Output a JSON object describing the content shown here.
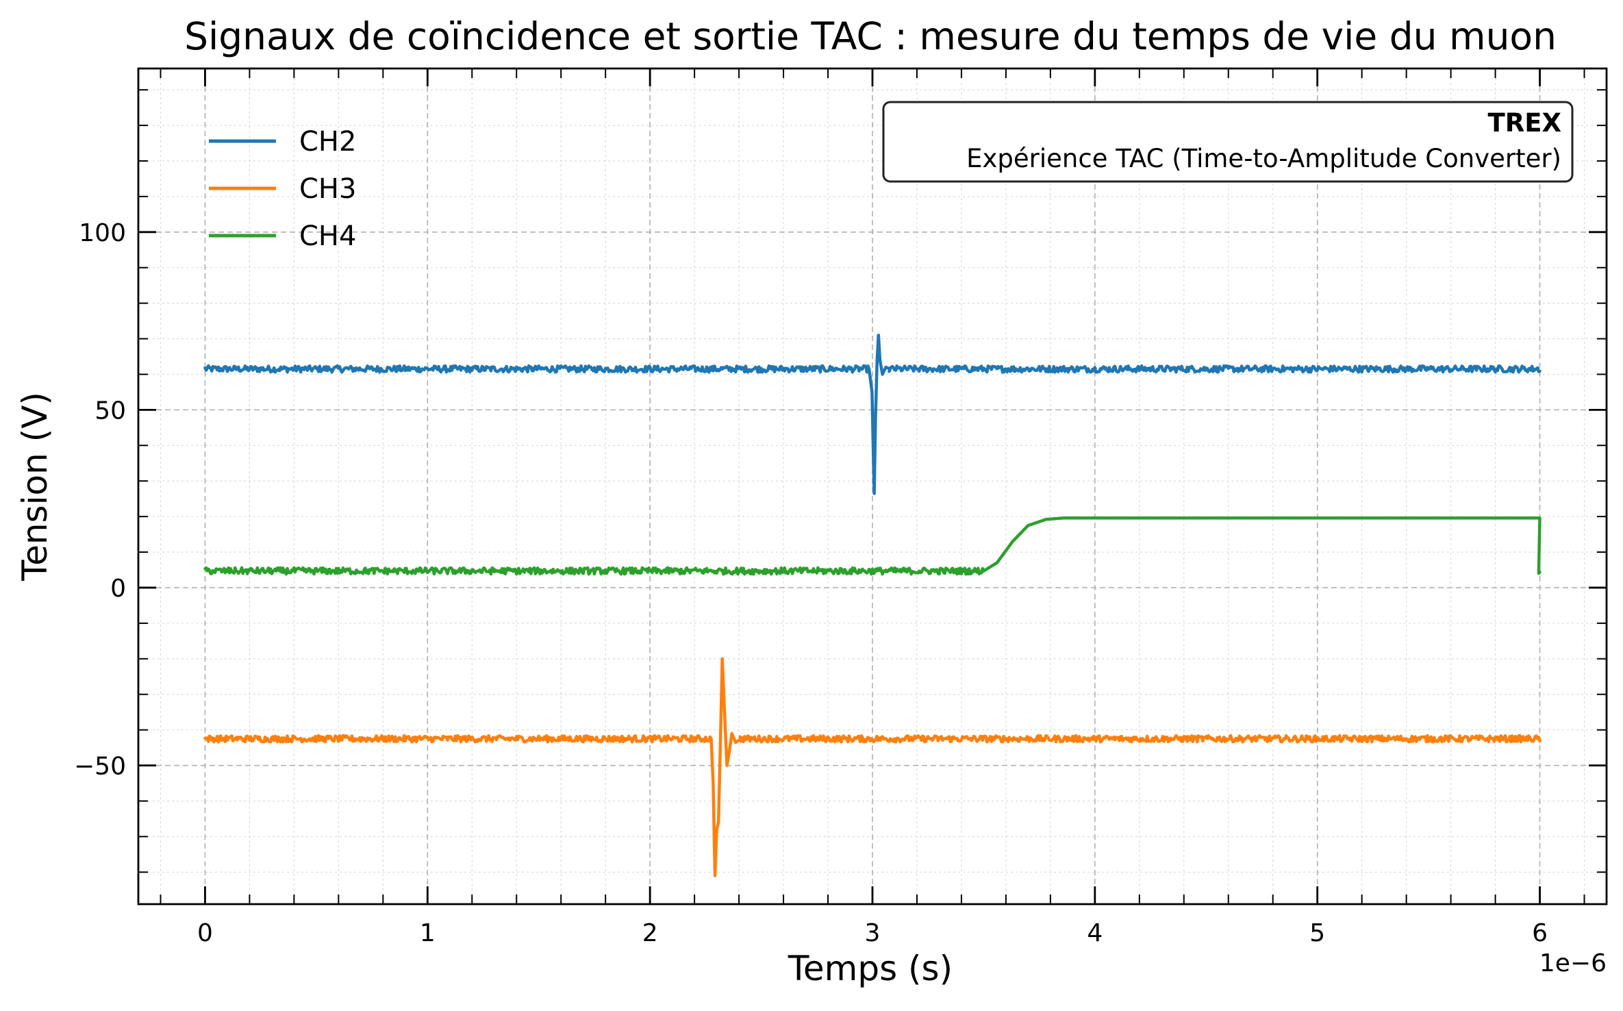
{
  "chart_data": {
    "type": "line",
    "title": "Signaux de coïncidence et sortie TAC : mesure du temps de vie du muon",
    "xlabel": "Temps (s)",
    "ylabel": "Tension (V)",
    "x_offset_label": "1e−6",
    "xlim": [
      -0.3,
      6.3
    ],
    "ylim": [
      -89,
      146
    ],
    "x_major_ticks": [
      0,
      1,
      2,
      3,
      4,
      5,
      6
    ],
    "x_tick_labels": [
      "0",
      "1",
      "2",
      "3",
      "4",
      "5",
      "6"
    ],
    "y_major_ticks": [
      -50,
      0,
      50,
      100
    ],
    "y_tick_labels": [
      "−50",
      "0",
      "50",
      "100"
    ],
    "x_minor_step": 0.2,
    "y_minor_step": 10,
    "grid": true,
    "legend_position": "top-left",
    "annotation": {
      "title": "TREX",
      "subtitle": "Expérience TAC (Time-to-Amplitude Converter)",
      "position": "top-right"
    },
    "x_range": [
      0,
      6
    ],
    "series": [
      {
        "name": "CH2",
        "color": "#1f77b4",
        "baseline": 61.5,
        "noise": 0.9,
        "events": [
          {
            "x": 2.985,
            "y": 61.5
          },
          {
            "x": 2.998,
            "y": 55
          },
          {
            "x": 3.003,
            "y": 40
          },
          {
            "x": 3.008,
            "y": 26.5
          },
          {
            "x": 3.014,
            "y": 48
          },
          {
            "x": 3.021,
            "y": 64
          },
          {
            "x": 3.027,
            "y": 71
          },
          {
            "x": 3.034,
            "y": 64
          },
          {
            "x": 3.045,
            "y": 60
          },
          {
            "x": 3.06,
            "y": 62
          },
          {
            "x": 3.08,
            "y": 61.5
          }
        ]
      },
      {
        "name": "CH3",
        "color": "#ff7f0e",
        "baseline": -42.5,
        "noise": 0.9,
        "events": [
          {
            "x": 2.275,
            "y": -42.5
          },
          {
            "x": 2.284,
            "y": -55
          },
          {
            "x": 2.292,
            "y": -81
          },
          {
            "x": 2.3,
            "y": -68
          },
          {
            "x": 2.308,
            "y": -66
          },
          {
            "x": 2.316,
            "y": -45
          },
          {
            "x": 2.325,
            "y": -20
          },
          {
            "x": 2.335,
            "y": -35
          },
          {
            "x": 2.346,
            "y": -50
          },
          {
            "x": 2.357,
            "y": -46
          },
          {
            "x": 2.368,
            "y": -41
          },
          {
            "x": 2.385,
            "y": -43.5
          },
          {
            "x": 2.41,
            "y": -42.5
          }
        ]
      },
      {
        "name": "CH4",
        "color": "#2ca02c",
        "baseline": 4.7,
        "noise": 0.9,
        "events": [
          {
            "x": 3.5,
            "y": 4.7
          },
          {
            "x": 3.56,
            "y": 7
          },
          {
            "x": 3.63,
            "y": 13
          },
          {
            "x": 3.7,
            "y": 17.5
          },
          {
            "x": 3.78,
            "y": 19.2
          },
          {
            "x": 3.86,
            "y": 19.6
          },
          {
            "x": 6.0,
            "y": 19.6
          }
        ]
      }
    ]
  }
}
